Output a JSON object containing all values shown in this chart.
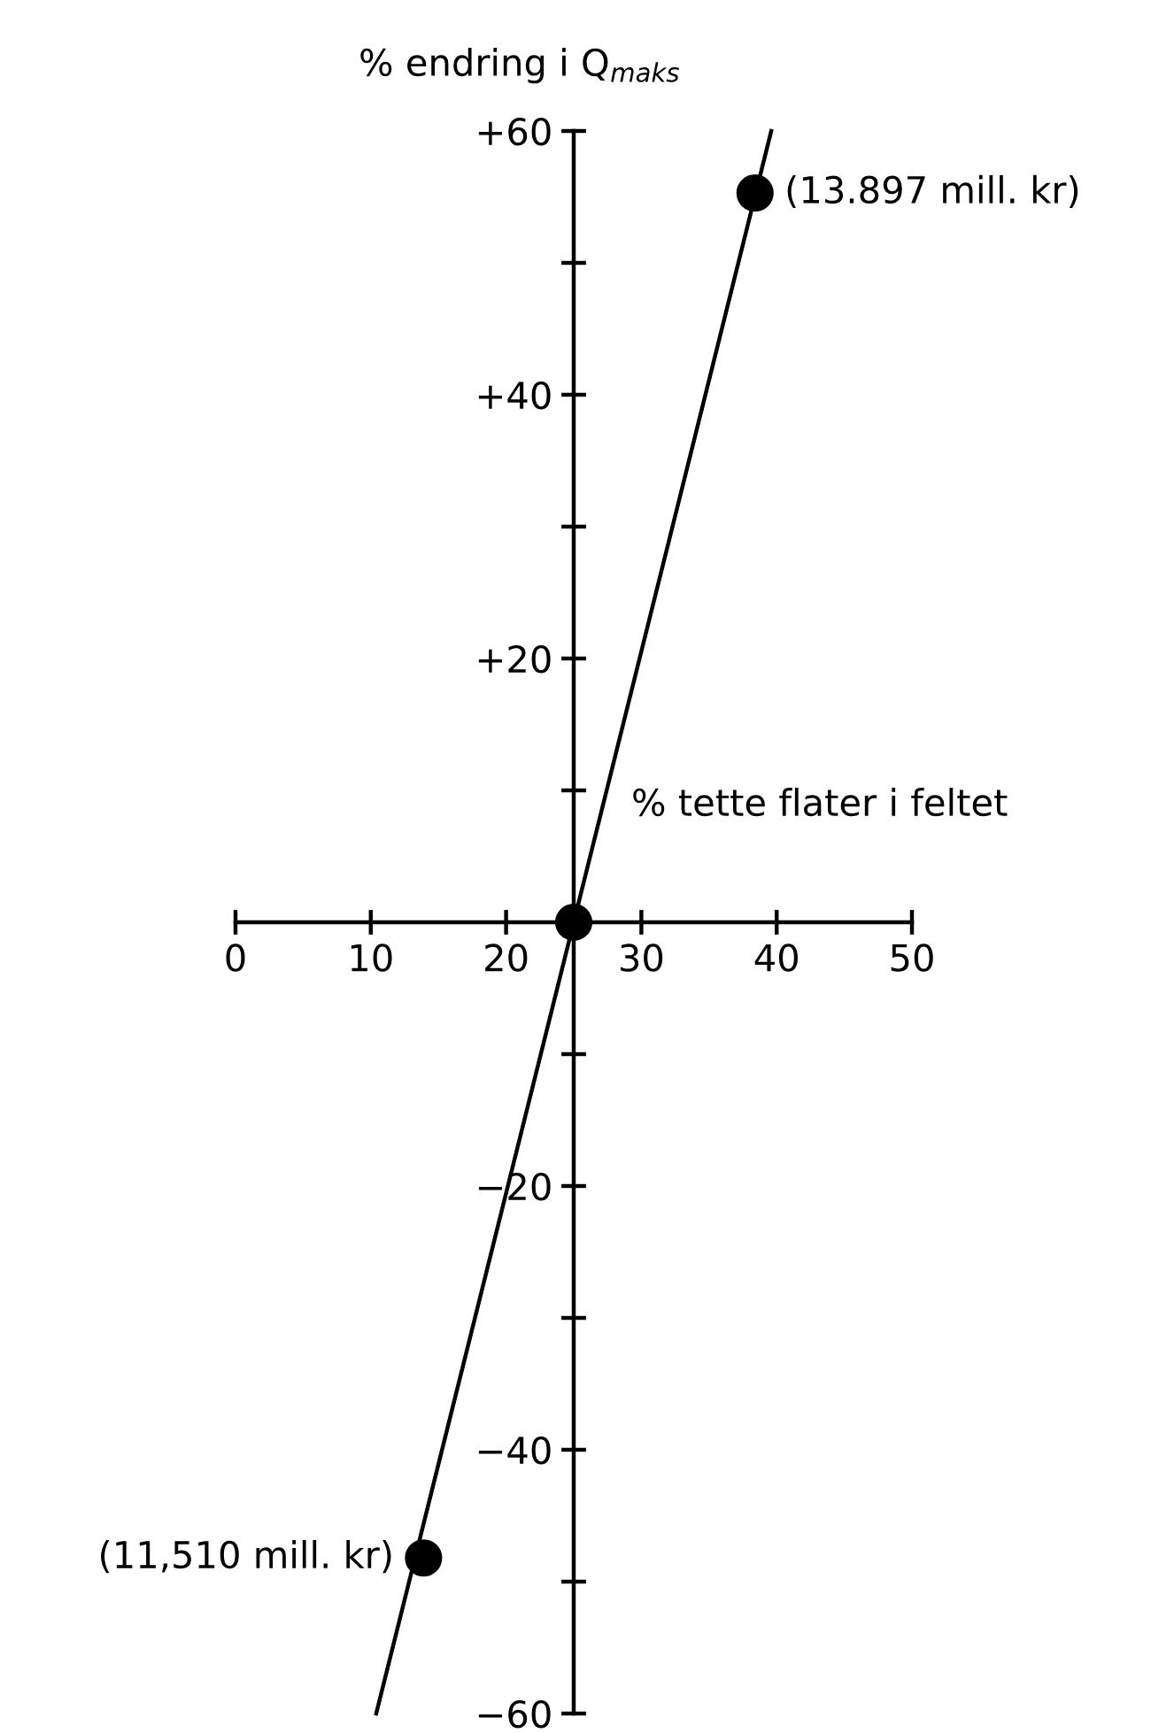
{
  "chart_data": {
    "type": "line",
    "xlabel": "% tette flater i feltet",
    "ylabel": "% endring i Q$_{maks}$",
    "xlim": [
      0,
      50
    ],
    "ylim": [
      -60,
      60
    ],
    "xticks": [
      0,
      10,
      20,
      30,
      40,
      50
    ],
    "yticks": [
      {
        "value": -60,
        "label": "−60"
      },
      {
        "value": -40,
        "label": "−40"
      },
      {
        "value": -20,
        "label": "−20"
      },
      {
        "value": 20,
        "label": "+20"
      },
      {
        "value": 40,
        "label": "+40"
      },
      {
        "value": 60,
        "label": "+60"
      }
    ],
    "series": [
      {
        "color": "#000000",
        "x": [
          10.4,
          39.6
        ],
        "values": [
          -60,
          60
        ],
        "marker": "none",
        "line_style": "solid"
      },
      {
        "type": "scatter",
        "color": "#000000",
        "x": [
          13.9,
          25,
          38.4
        ],
        "values": [
          -48.2,
          0,
          55.3
        ],
        "marker": "circle"
      }
    ],
    "annotations": [
      {
        "text": "(13.897 mill. kr)",
        "x": 38.4,
        "y": 55.3
      },
      {
        "text": "(11,510 mill. kr)",
        "x": 13.9,
        "y": -48.2
      }
    ],
    "grid": false,
    "legend": false
  }
}
